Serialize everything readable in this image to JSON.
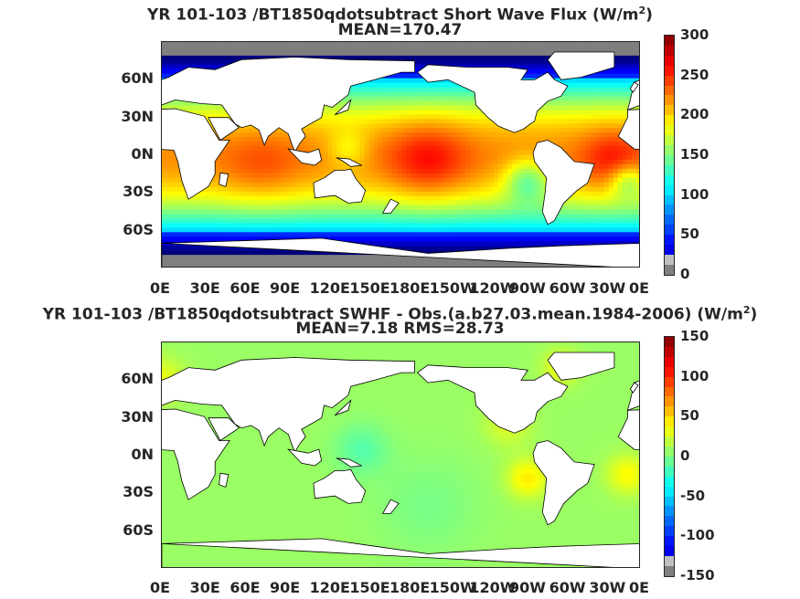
{
  "chart_data": [
    {
      "type": "heatmap",
      "title_line1": "YR 101-103 /BT1850qdotsubtract  Short Wave Flux (W/m",
      "title_sup": "2",
      "title_close": ")",
      "title_line2": "MEAN=170.47",
      "x_ticks": [
        "0E",
        "30E",
        "60E",
        "90E",
        "120E",
        "150E",
        "180E",
        "150W",
        "120W",
        "90W",
        "60W",
        "30W",
        "0E"
      ],
      "y_ticks": [
        "60N",
        "30N",
        "0N",
        "30S",
        "60S"
      ],
      "colorbar": {
        "min": 0,
        "max": 300,
        "ticks": [
          "300",
          "250",
          "200",
          "150",
          "100",
          "50",
          "0"
        ]
      }
    },
    {
      "type": "heatmap",
      "title_line1": "YR 101-103 /BT1850qdotsubtract SWHF - Obs.(a.b27.03.mean.1984-2006) (W/m",
      "title_sup": "2",
      "title_close": ")",
      "title_line2": "MEAN=7.18 RMS=28.73",
      "x_ticks": [
        "0E",
        "30E",
        "60E",
        "90E",
        "120E",
        "150E",
        "180E",
        "150W",
        "120W",
        "90W",
        "60W",
        "30W",
        "0E"
      ],
      "y_ticks": [
        "60N",
        "30N",
        "0N",
        "30S",
        "60S"
      ],
      "colorbar": {
        "min": -150,
        "max": 150,
        "ticks": [
          "150",
          "100",
          "50",
          "0",
          "-50",
          "-100",
          "-150"
        ]
      }
    }
  ],
  "colors": {
    "jet": [
      "#00007f",
      "#0000ff",
      "#007fff",
      "#00ffff",
      "#7fff7f",
      "#ffff00",
      "#ff7f00",
      "#ff0000",
      "#7f0000"
    ],
    "land": "#ffffff",
    "missing": "#808080"
  }
}
